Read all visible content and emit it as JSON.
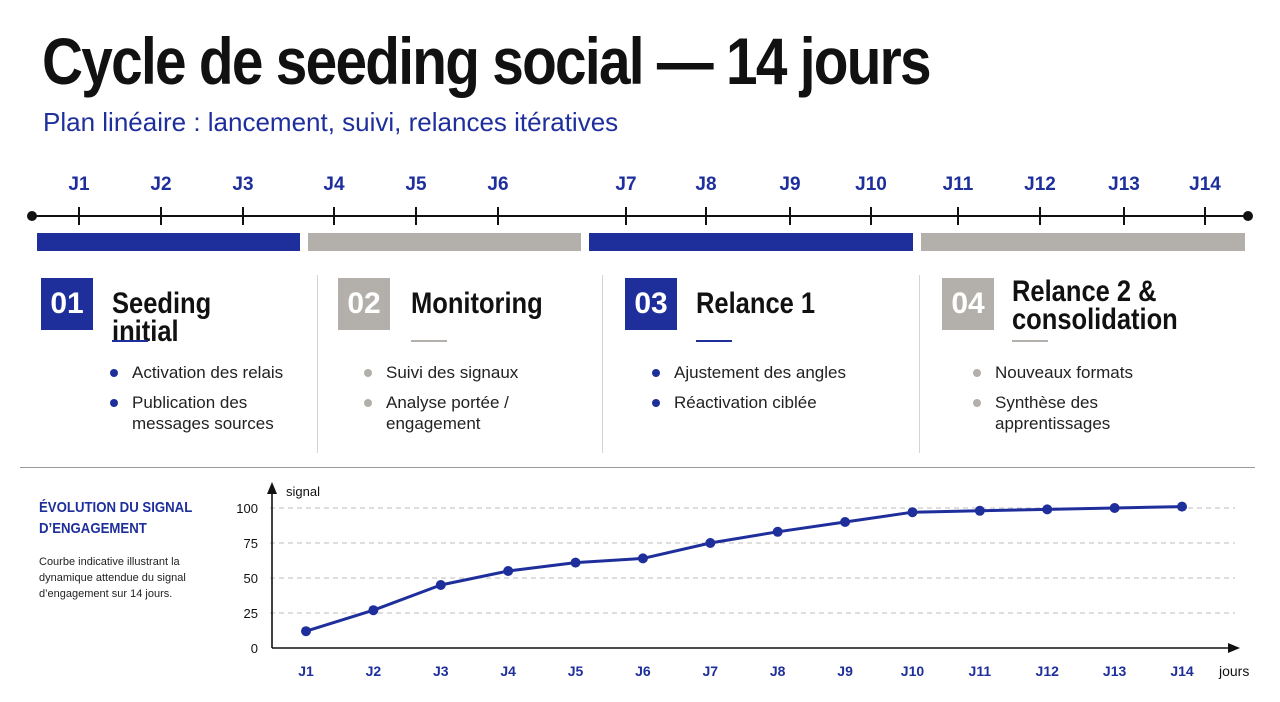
{
  "title": "Cycle de seeding social — 14 jours",
  "subtitle": "Plan linéaire : lancement, suivi, relances itératives",
  "colors": {
    "primary": "#1e2f9c",
    "secondary": "#b3afab",
    "text": "#111111"
  },
  "timeline": {
    "days": [
      "J1",
      "J2",
      "J3",
      "J4",
      "J5",
      "J6",
      "J7",
      "J8",
      "J9",
      "J10",
      "J11",
      "J12",
      "J13",
      "J14"
    ]
  },
  "phases": [
    {
      "number": "01",
      "title": "Seeding initial",
      "color": "primary",
      "bullets": [
        "Activation des relais",
        "Publication des messages sources"
      ]
    },
    {
      "number": "02",
      "title": "Monitoring",
      "color": "secondary",
      "bullets": [
        "Suivi des signaux",
        "Analyse portée / engagement"
      ]
    },
    {
      "number": "03",
      "title": "Relance 1",
      "color": "primary",
      "bullets": [
        "Ajustement des angles",
        "Réactivation ciblée"
      ]
    },
    {
      "number": "04",
      "title": "Relance 2 & consolidation",
      "color": "secondary",
      "bullets": [
        "Nouveaux formats",
        "Synthèse des apprentissages"
      ]
    }
  ],
  "chart_section": {
    "title": "ÉVOLUTION DU SIGNAL D’ENGAGEMENT",
    "description": "Courbe indicative illustrant la dynamique attendue du signal d’engagement sur 14 jours."
  },
  "chart_data": {
    "type": "line",
    "title": "",
    "xlabel": "jours",
    "ylabel": "signal",
    "categories": [
      "J1",
      "J2",
      "J3",
      "J4",
      "J5",
      "J6",
      "J7",
      "J8",
      "J9",
      "J10",
      "J11",
      "J12",
      "J13",
      "J14"
    ],
    "series": [
      {
        "values": [
          12,
          27,
          45,
          55,
          61,
          64,
          75,
          83,
          90,
          97,
          98,
          99,
          100,
          101
        ]
      }
    ],
    "yticks": [
      0,
      25,
      50,
      75,
      100
    ],
    "ylim": [
      0,
      105
    ],
    "grid": "horizontal dashed"
  }
}
